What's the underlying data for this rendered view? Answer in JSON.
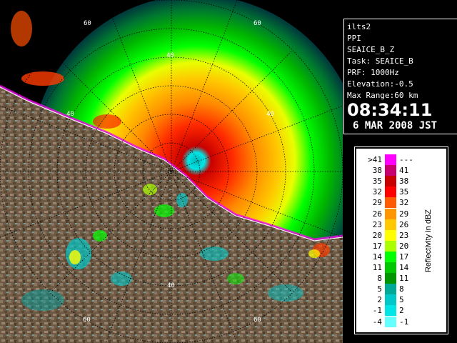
{
  "info": {
    "radar_name": "ilts2",
    "scan_type": "PPI",
    "product": "SEAICE_B_Z",
    "task": "Task: SEAICE_B",
    "prf": "PRF: 1000Hz",
    "elevation": "Elevation:-0.5",
    "max_range": "Max Range:60 km",
    "time": "08:34:11",
    "date": "6 MAR 2008 JST"
  },
  "range_rings": {
    "labels": [
      "60",
      "40",
      "40",
      "60",
      "40",
      "40",
      "60",
      "60"
    ]
  },
  "legend": {
    "unit_label": "Reflectivity in dBZ",
    "rows": [
      {
        "lo": ">41",
        "hi": "---",
        "color": "#ff00ff"
      },
      {
        "lo": "38",
        "hi": "41",
        "color": "#c8006e"
      },
      {
        "lo": "35",
        "hi": "38",
        "color": "#c80000"
      },
      {
        "lo": "32",
        "hi": "35",
        "color": "#ff0000"
      },
      {
        "lo": "29",
        "hi": "32",
        "color": "#ff5a00"
      },
      {
        "lo": "26",
        "hi": "29",
        "color": "#ff9600"
      },
      {
        "lo": "23",
        "hi": "26",
        "color": "#ffc800"
      },
      {
        "lo": "20",
        "hi": "23",
        "color": "#ffff00"
      },
      {
        "lo": "17",
        "hi": "20",
        "color": "#aaff00"
      },
      {
        "lo": "14",
        "hi": "17",
        "color": "#00ff00"
      },
      {
        "lo": "11",
        "hi": "14",
        "color": "#00c800"
      },
      {
        "lo": "8",
        "hi": "11",
        "color": "#009600"
      },
      {
        "lo": "5",
        "hi": "8",
        "color": "#00aa96"
      },
      {
        "lo": "2",
        "hi": "5",
        "color": "#00c8c8"
      },
      {
        "lo": "-1",
        "hi": "2",
        "color": "#00e6e6"
      },
      {
        "lo": "-4",
        "hi": "-1",
        "color": "#64ffff"
      }
    ]
  }
}
